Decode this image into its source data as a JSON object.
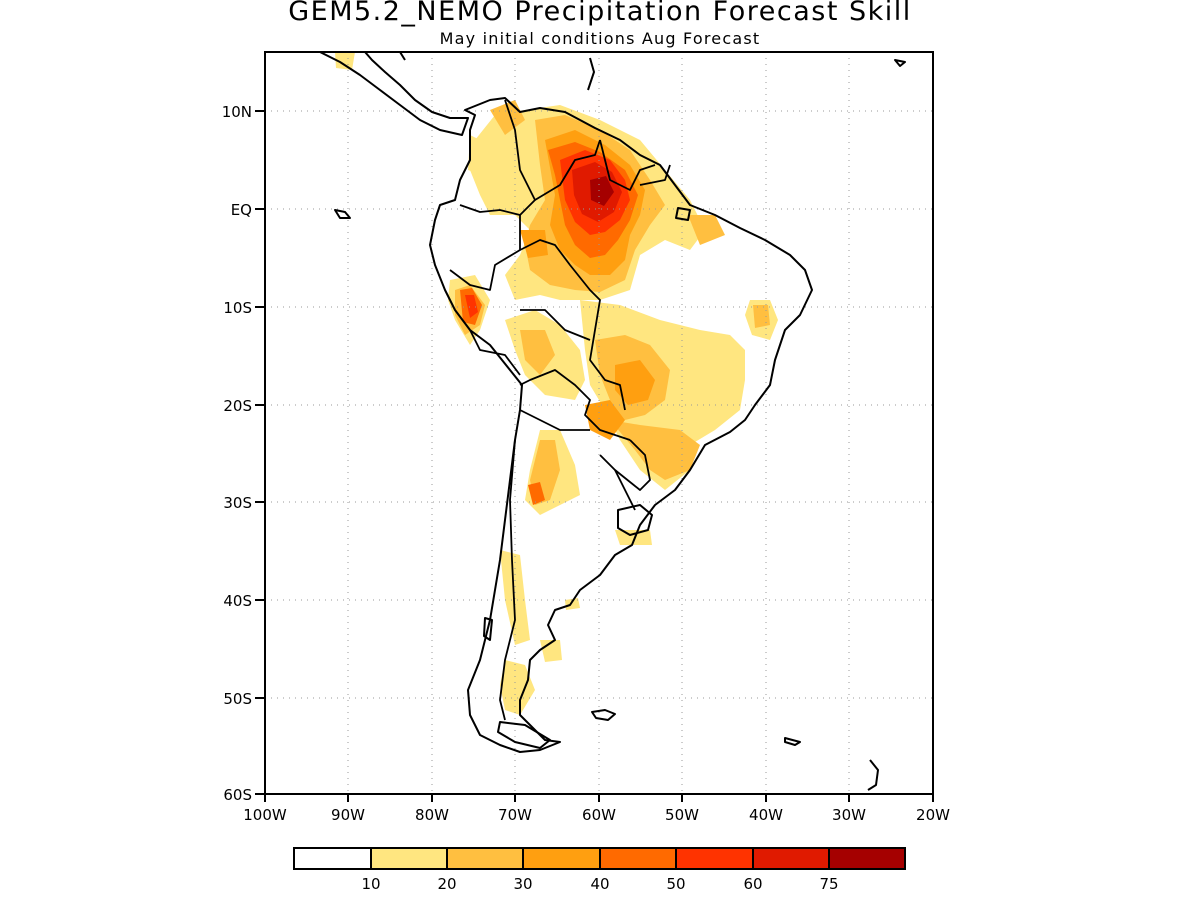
{
  "header": {
    "title": "GEM5.2_NEMO Precipitation Forecast Skill",
    "subtitle": "May initial conditions   Aug Forecast"
  },
  "map": {
    "region": "South America",
    "lon_range": [
      -100,
      -20
    ],
    "lat_range": [
      -60,
      15
    ],
    "x_tick_labels": [
      "100W",
      "90W",
      "80W",
      "70W",
      "60W",
      "50W",
      "40W",
      "30W",
      "20W"
    ],
    "y_tick_labels": [
      "10N",
      "EQ",
      "10S",
      "20S",
      "30S",
      "40S",
      "50S",
      "60S"
    ],
    "gridlines": "dotted",
    "grid": true
  },
  "colorbar": {
    "labels": [
      "10",
      "20",
      "30",
      "40",
      "50",
      "60",
      "75"
    ],
    "colors": [
      "#ffffff",
      "#ffe680",
      "#ffbf40",
      "#ff9f10",
      "#ff6a00",
      "#ff3300",
      "#e01a00",
      "#a50000"
    ]
  },
  "skill_regions": [
    {
      "name": "northern-amazon-guianas",
      "level": 75,
      "color": "#a50000"
    },
    {
      "name": "central-amazon",
      "level": 60,
      "color": "#e01a00"
    },
    {
      "name": "peru-andes",
      "level": 50,
      "color": "#ff3300"
    },
    {
      "name": "central-brazil",
      "level": 30,
      "color": "#ff9f10"
    },
    {
      "name": "southeast-brazil",
      "level": 20,
      "color": "#ffbf40"
    },
    {
      "name": "northeast-brazil",
      "level": 20,
      "color": "#ffbf40"
    },
    {
      "name": "argentina-andes",
      "level": 20,
      "color": "#ffbf40"
    },
    {
      "name": "patagonia",
      "level": 10,
      "color": "#ffe680"
    }
  ]
}
